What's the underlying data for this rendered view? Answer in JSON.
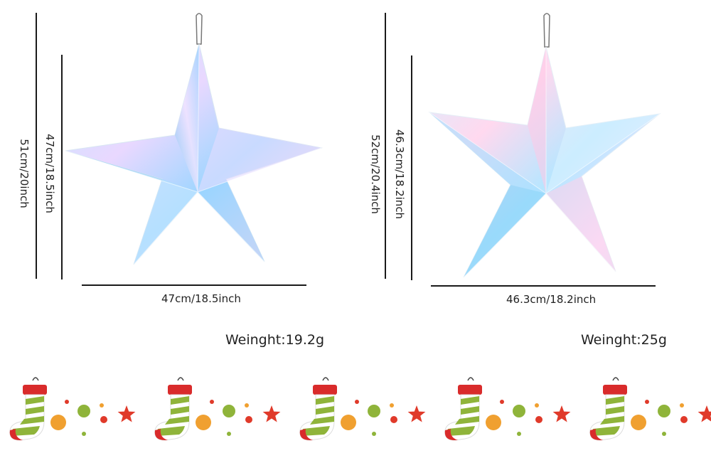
{
  "left": {
    "outer_height_label": "51cm/20inch",
    "inner_height_label": "47cm/18.5inch",
    "width_label": "47cm/18.5inch",
    "weight_label": "Weinght:19.2g"
  },
  "right": {
    "outer_height_label": "52cm/20.4inch",
    "inner_height_label": "46.3cm/18.2inch",
    "width_label": "46.3cm/18.2inch",
    "weight_label": "Weinght:25g"
  },
  "colors": {
    "line": "#1a1a1a",
    "stocking_red": "#d92b2b",
    "stocking_green": "#8fb43a",
    "star_red": "#e03a2a",
    "dot_orange": "#f0a030",
    "dot_green": "#8fb43a",
    "dot_red": "#e03a2a"
  },
  "icons": [
    "iridescent-star-icon",
    "christmas-stocking-icon",
    "red-star-icon"
  ]
}
